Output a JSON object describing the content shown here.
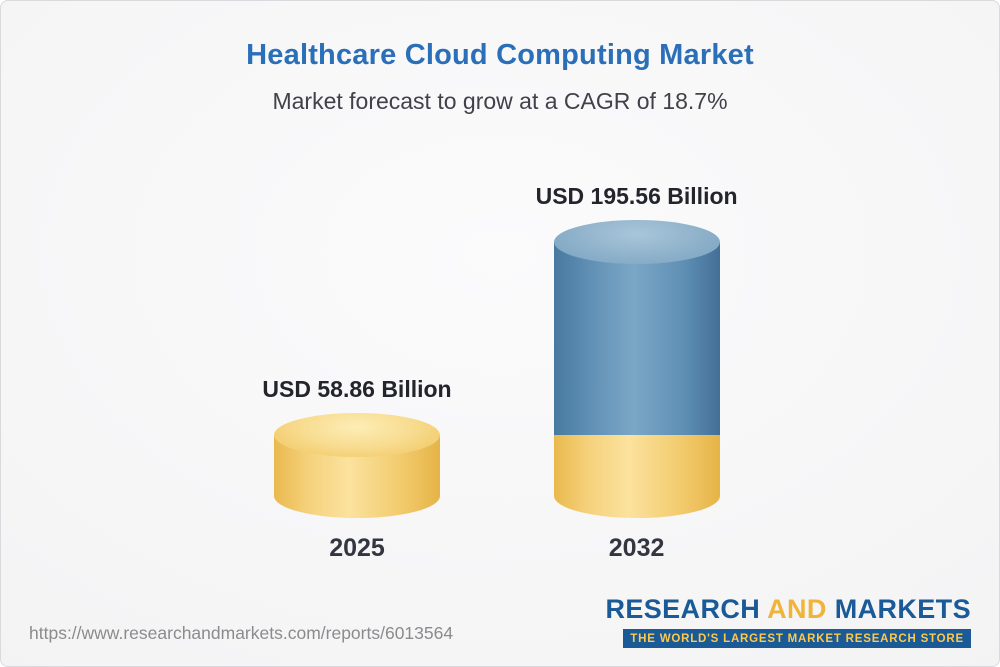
{
  "header": {
    "title": "Healthcare Cloud Computing Market",
    "subtitle": "Market forecast to grow at a CAGR of 18.7%"
  },
  "chart_data": {
    "type": "bar",
    "variant": "3d-cylinder",
    "categories": [
      "2025",
      "2032"
    ],
    "values": [
      58.86,
      195.56
    ],
    "value_labels": [
      "USD 58.86 Billion",
      "USD 195.56 Billion"
    ],
    "unit": "USD Billion",
    "cagr": "18.7%",
    "ylim": [
      0,
      200
    ],
    "grid": false,
    "legend": false,
    "colors": {
      "base_gold": "#f5c963",
      "growth_blue": "#5b89ad",
      "title_blue": "#2a6fb8"
    },
    "notes": "2032 cylinder is blue with a gold base segment equal to the 2025 value; 2025 cylinder is entirely gold."
  },
  "footer": {
    "url": "https://www.researchandmarkets.com/reports/6013564",
    "logo": {
      "part1": "RESEARCH",
      "part2": "AND",
      "part3": "MARKETS",
      "tagline": "THE WORLD'S LARGEST MARKET RESEARCH STORE"
    }
  }
}
